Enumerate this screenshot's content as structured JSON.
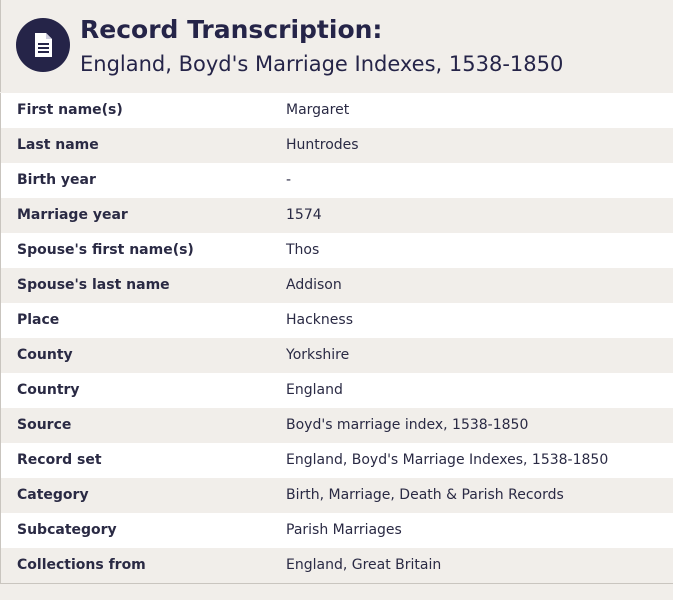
{
  "header": {
    "title": "Record Transcription:",
    "subtitle": "England, Boyd's Marriage Indexes, 1538-1850"
  },
  "table": {
    "rows": [
      [
        "First name(s)",
        "Margaret"
      ],
      [
        "Last name",
        "Huntrodes"
      ],
      [
        "Birth year",
        "-"
      ],
      [
        "Marriage year",
        "1574"
      ],
      [
        "Spouse's first name(s)",
        "Thos"
      ],
      [
        "Spouse's last name",
        "Addison"
      ],
      [
        "Place",
        "Hackness"
      ],
      [
        "County",
        "Yorkshire"
      ],
      [
        "Country",
        "England"
      ],
      [
        "Source",
        "Boyd's marriage index, 1538-1850"
      ],
      [
        "Record set",
        "England, Boyd's Marriage Indexes, 1538-1850"
      ],
      [
        "Category",
        "Birth, Marriage, Death & Parish Records"
      ],
      [
        "Subcategory",
        "Parish Marriages"
      ],
      [
        "Collections from",
        "England, Great Britain"
      ]
    ]
  }
}
